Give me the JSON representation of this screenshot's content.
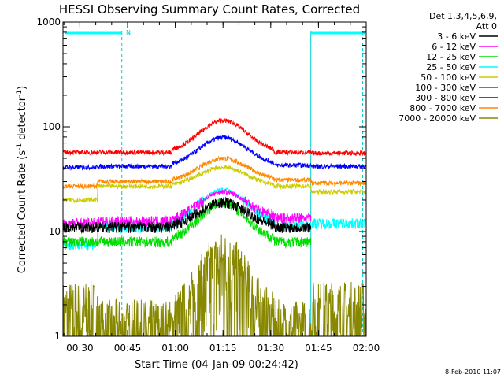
{
  "chart_data": {
    "type": "line",
    "title": "HESSI Observing Summary Count Rates, Corrected",
    "xlabel": "Start Time (04-Jan-09 00:24:42)",
    "ylabel_main": "Corrected Count Rate (s",
    "ylabel_sup1": "-1",
    "ylabel_mid": " detector",
    "ylabel_sup2": "-1",
    "ylabel_end": ")",
    "yscale": "log",
    "ylim": [
      1,
      1000
    ],
    "xlim_minutes": [
      24.7,
      120
    ],
    "x_ticks": [
      {
        "m": 30,
        "label": "00:30"
      },
      {
        "m": 45,
        "label": "00:45"
      },
      {
        "m": 60,
        "label": "01:00"
      },
      {
        "m": 75,
        "label": "01:15"
      },
      {
        "m": 90,
        "label": "01:30"
      },
      {
        "m": 105,
        "label": "01:45"
      },
      {
        "m": 120,
        "label": "02:00"
      }
    ],
    "y_ticks": [
      {
        "v": 1,
        "label": "1"
      },
      {
        "v": 10,
        "label": "10"
      },
      {
        "v": 100,
        "label": "100"
      },
      {
        "v": 1000,
        "label": "1000"
      }
    ],
    "legend_header": [
      "Det 1,3,4,5,6,9,",
      "Att 0"
    ],
    "series": [
      {
        "name": "3 - 6 keV",
        "color": "#000000",
        "pre": 11,
        "flat": 11,
        "peak": 19,
        "post": 11,
        "after": null
      },
      {
        "name": "6 - 12 keV",
        "color": "#ff00ff",
        "pre": 12,
        "flat": 12.5,
        "peak": 24,
        "post": 13.5,
        "after": null
      },
      {
        "name": "12 - 25 keV",
        "color": "#00dd00",
        "pre": 8,
        "flat": 8,
        "peak": 19,
        "post": 8,
        "after": null
      },
      {
        "name": "25 - 50 keV",
        "color": "#00ffff",
        "pre": 7.5,
        "flat": 11,
        "peak": 25,
        "post": 11.5,
        "after": 12
      },
      {
        "name": "50 - 100 keV",
        "color": "#cccc00",
        "pre": 20,
        "flat": 27,
        "peak": 41,
        "post": 27,
        "after": 24
      },
      {
        "name": "100 - 300 keV",
        "color": "#ff0000",
        "pre": 57,
        "flat": 57,
        "peak": 115,
        "post": 57,
        "after": 56
      },
      {
        "name": "300 - 800 keV",
        "color": "#0000ff",
        "pre": 41,
        "flat": 42,
        "peak": 79,
        "post": 43,
        "after": 42
      },
      {
        "name": "800 - 7000 keV",
        "color": "#ff8800",
        "pre": 27,
        "flat": 30,
        "peak": 50,
        "post": 31,
        "after": 29
      },
      {
        "name": "7000 - 20000 keV",
        "color": "#888800",
        "pre": 1.5,
        "flat": 1,
        "peak": 4.5,
        "post": 1,
        "after": 1.5
      }
    ],
    "flag_label": "N",
    "markers_minutes": [
      43.2,
      102.6,
      118.9
    ],
    "footer_date": "8-Feb-2010 11:07"
  }
}
